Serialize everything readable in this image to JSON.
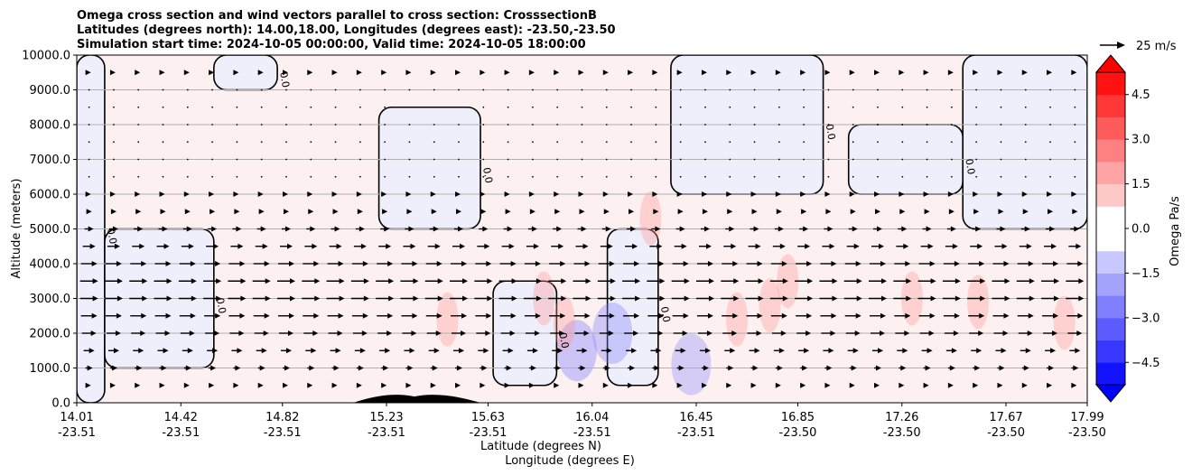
{
  "chart_data": {
    "type": "heatmap",
    "title_lines": [
      "Omega cross section and wind vectors parallel to cross section: CrosssectionB",
      "Latitudes (degrees north): 14.00,18.00, Longitudes (degrees east): -23.50,-23.50",
      "Simulation start time: 2024-10-05 00:00:00, Valid time: 2024-10-05 18:00:00"
    ],
    "ylabel": "Altitude (meters)",
    "xlabel_1": "Latitude (degrees N)",
    "xlabel_2": "Longitude (degrees E)",
    "ylim": [
      0,
      10000
    ],
    "yticks": [
      0,
      1000,
      2000,
      3000,
      4000,
      5000,
      6000,
      7000,
      8000,
      9000,
      10000
    ],
    "ytick_labels": [
      "0.0",
      "1000.0",
      "2000.0",
      "3000.0",
      "4000.0",
      "5000.0",
      "6000.0",
      "7000.0",
      "8000.0",
      "9000.0",
      "10000.0"
    ],
    "xlim": [
      14.01,
      17.99
    ],
    "xticks_lat": [
      14.01,
      14.42,
      14.82,
      15.23,
      15.63,
      16.04,
      16.45,
      16.85,
      17.26,
      17.67,
      17.99
    ],
    "xtick_labels_lat": [
      "14.01",
      "14.42",
      "14.82",
      "15.23",
      "15.63",
      "16.04",
      "16.45",
      "16.85",
      "17.26",
      "17.67",
      "17.99"
    ],
    "xtick_labels_lon": [
      "-23.51",
      "-23.51",
      "-23.51",
      "-23.51",
      "-23.51",
      "-23.51",
      "-23.51",
      "-23.50",
      "-23.50",
      "-23.50",
      "-23.50"
    ],
    "grid": "horizontal",
    "contour_label": "0.0",
    "colorbar": {
      "label": "Omega Pa/s",
      "range": [
        -5.25,
        5.25
      ],
      "ticks": [
        4.5,
        3.0,
        1.5,
        0.0,
        -1.5,
        -3.0,
        -4.5
      ],
      "tick_labels": [
        "4.5",
        "3.0",
        "1.5",
        "0.0",
        "−1.5",
        "−3.0",
        "−4.5"
      ],
      "extend": "both",
      "negative_color": "#0000ff",
      "positive_color": "#ff0000"
    },
    "quiver_key": {
      "label": "25 m/s",
      "speed": 25
    },
    "background_field": {
      "positive_color": "#fdf0f0",
      "negative_color": "#efeffb"
    },
    "weak_ascent_regions": [
      {
        "x": [
          14.01,
          14.12
        ],
        "y": [
          0,
          10000
        ]
      },
      {
        "x": [
          14.12,
          14.55
        ],
        "y": [
          1000,
          5000
        ]
      },
      {
        "x": [
          14.55,
          14.8
        ],
        "y": [
          9000,
          10000
        ]
      },
      {
        "x": [
          15.2,
          15.6
        ],
        "y": [
          5000,
          8500
        ]
      },
      {
        "x": [
          15.65,
          15.9
        ],
        "y": [
          500,
          3500
        ]
      },
      {
        "x": [
          16.1,
          16.3
        ],
        "y": [
          500,
          5000
        ]
      },
      {
        "x": [
          16.35,
          16.95
        ],
        "y": [
          6000,
          10000
        ]
      },
      {
        "x": [
          17.05,
          17.5
        ],
        "y": [
          6000,
          8000
        ]
      },
      {
        "x": [
          17.5,
          17.99
        ],
        "y": [
          5000,
          10000
        ]
      }
    ],
    "strong_ascent_regions": [
      {
        "lat": 15.98,
        "alt": 1500,
        "value": -1.5
      },
      {
        "lat": 16.12,
        "alt": 2000,
        "value": -1.2
      },
      {
        "lat": 16.43,
        "alt": 1100,
        "value": -0.8
      }
    ],
    "descent_regions": [
      {
        "lat": 15.47,
        "alt": 2400,
        "value": 0.8
      },
      {
        "lat": 15.85,
        "alt": 3000,
        "value": 0.7
      },
      {
        "lat": 15.93,
        "alt": 2300,
        "value": 0.8
      },
      {
        "lat": 16.27,
        "alt": 5300,
        "value": 0.6
      },
      {
        "lat": 16.61,
        "alt": 2400,
        "value": 0.7
      },
      {
        "lat": 16.74,
        "alt": 2800,
        "value": 0.7
      },
      {
        "lat": 16.81,
        "alt": 3500,
        "value": 0.8
      },
      {
        "lat": 17.3,
        "alt": 3000,
        "value": 0.9
      },
      {
        "lat": 17.56,
        "alt": 2900,
        "value": 0.7
      },
      {
        "lat": 17.9,
        "alt": 2300,
        "value": 0.8
      }
    ],
    "terrain": {
      "lat": [
        15.1,
        15.6
      ],
      "peak_alt": 180,
      "peak_lat": 15.34
    },
    "wind_profile_ms": [
      {
        "alt": 500,
        "u": 2
      },
      {
        "alt": 1000,
        "u": 4
      },
      {
        "alt": 1500,
        "u": 6
      },
      {
        "alt": 2000,
        "u": 8
      },
      {
        "alt": 2500,
        "u": 9
      },
      {
        "alt": 3000,
        "u": 10
      },
      {
        "alt": 3500,
        "u": 10
      },
      {
        "alt": 4000,
        "u": 9
      },
      {
        "alt": 4500,
        "u": 7
      },
      {
        "alt": 5000,
        "u": 5
      },
      {
        "alt": 5500,
        "u": 3
      },
      {
        "alt": 6000,
        "u": 2
      },
      {
        "alt": 6500,
        "u": 1
      },
      {
        "alt": 7000,
        "u": 1
      },
      {
        "alt": 7500,
        "u": 1
      },
      {
        "alt": 8000,
        "u": 1
      },
      {
        "alt": 8500,
        "u": 1
      },
      {
        "alt": 9000,
        "u": 1
      },
      {
        "alt": 9500,
        "u": 2
      }
    ]
  }
}
